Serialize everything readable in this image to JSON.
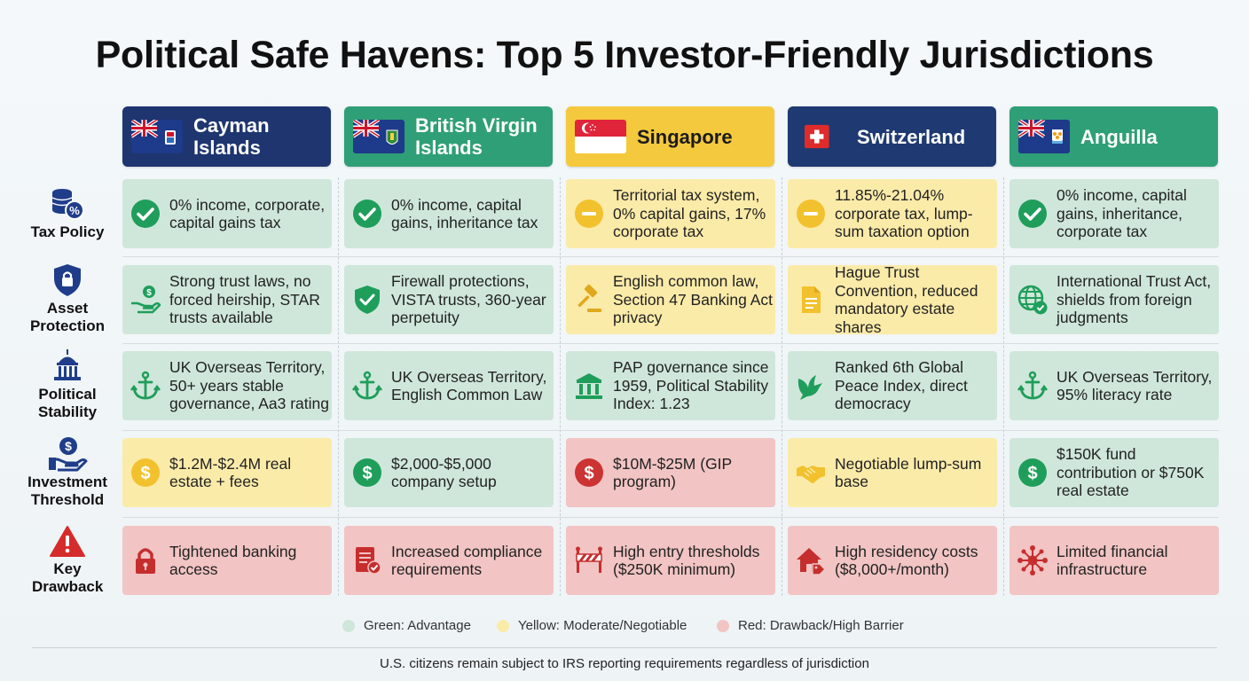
{
  "title": "Political Safe Havens: Top 5 Investor-Friendly Jurisdictions",
  "jurisdictions": [
    {
      "name": "Cayman Islands",
      "flag": "cayman-flag-icon",
      "header_color": "#1e3570"
    },
    {
      "name": "British Virgin Islands",
      "flag": "bvi-flag-icon",
      "header_color": "#2f9f77"
    },
    {
      "name": "Singapore",
      "flag": "singapore-flag-icon",
      "header_color": "#f5c93e"
    },
    {
      "name": "Switzerland",
      "flag": "switzerland-flag-icon",
      "header_color": "#1f3a72"
    },
    {
      "name": "Anguilla",
      "flag": "anguilla-flag-icon",
      "header_color": "#2f9f77"
    }
  ],
  "rows": [
    {
      "label": "Tax Policy",
      "icon": "coins-percent-icon",
      "cells": [
        {
          "text": "0% income, corporate, capital gains tax",
          "status": "green",
          "icon": "check-circle-icon"
        },
        {
          "text": "0% income, capital gains, inheritance tax",
          "status": "green",
          "icon": "check-circle-icon"
        },
        {
          "text": "Territorial tax system, 0% capital gains, 17% corporate tax",
          "status": "yellow",
          "icon": "minus-circle-icon"
        },
        {
          "text": "11.85%-21.04% corporate tax, lump-sum taxation option",
          "status": "yellow",
          "icon": "minus-circle-icon"
        },
        {
          "text": "0% income, capital gains, inheritance, corporate tax",
          "status": "green",
          "icon": "check-circle-icon"
        }
      ]
    },
    {
      "label": "Asset Protection",
      "icon": "shield-lock-icon",
      "cells": [
        {
          "text": "Strong trust laws, no forced heirship, STAR trusts available",
          "status": "green",
          "icon": "hand-dollar-icon"
        },
        {
          "text": "Firewall protections, VISTA trusts, 360-year perpetuity",
          "status": "green",
          "icon": "shield-check-icon"
        },
        {
          "text": "English common law, Section 47 Banking Act privacy",
          "status": "yellow",
          "icon": "gavel-icon"
        },
        {
          "text": "Hague Trust Convention, reduced mandatory estate shares",
          "status": "yellow",
          "icon": "document-icon"
        },
        {
          "text": "International Trust Act, shields from foreign judgments",
          "status": "green",
          "icon": "globe-check-icon"
        }
      ]
    },
    {
      "label": "Political Stability",
      "icon": "capitol-building-icon",
      "cells": [
        {
          "text": "UK Overseas Territory, 50+ years stable governance, Aa3 rating",
          "status": "green",
          "icon": "anchor-icon"
        },
        {
          "text": "UK Overseas Territory, English Common Law",
          "status": "green",
          "icon": "anchor-icon"
        },
        {
          "text": "PAP governance since 1959, Political Stability Index: 1.23",
          "status": "green",
          "icon": "bank-building-icon"
        },
        {
          "text": "Ranked 6th Global Peace Index, direct democracy",
          "status": "green",
          "icon": "dove-icon"
        },
        {
          "text": "UK Overseas Territory, 95% literacy rate",
          "status": "green",
          "icon": "anchor-icon"
        }
      ]
    },
    {
      "label": "Investment Threshold",
      "icon": "hand-dollar-icon",
      "cells": [
        {
          "text": "$1.2M-$2.4M real estate + fees",
          "status": "yellow",
          "icon": "dollar-circle-icon"
        },
        {
          "text": "$2,000-$5,000 company setup",
          "status": "green",
          "icon": "dollar-circle-icon"
        },
        {
          "text": "$10M-$25M (GIP program)",
          "status": "red",
          "icon": "dollar-circle-icon"
        },
        {
          "text": "Negotiable lump-sum base",
          "status": "yellow",
          "icon": "handshake-icon"
        },
        {
          "text": "$150K fund contribution or $750K real estate",
          "status": "green",
          "icon": "dollar-circle-icon"
        }
      ]
    },
    {
      "label": "Key Drawback",
      "icon": "warning-triangle-icon",
      "cells": [
        {
          "text": "Tightened banking access",
          "status": "red",
          "icon": "padlock-icon"
        },
        {
          "text": "Increased compliance requirements",
          "status": "red",
          "icon": "checklist-icon"
        },
        {
          "text": "High entry thresholds ($250K minimum)",
          "status": "red",
          "icon": "barrier-icon"
        },
        {
          "text": "High residency costs ($8,000+/month)",
          "status": "red",
          "icon": "house-tag-icon"
        },
        {
          "text": "Limited financial infrastructure",
          "status": "red",
          "icon": "network-icon"
        }
      ]
    }
  ],
  "legend": [
    {
      "label": "Green: Advantage",
      "color": "#cfe7da"
    },
    {
      "label": "Yellow: Moderate/Negotiable",
      "color": "#fbeba9"
    },
    {
      "label": "Red: Drawback/High Barrier",
      "color": "#f2c4c4"
    }
  ],
  "footnote": "U.S. citizens remain subject to IRS reporting requirements regardless of jurisdiction"
}
